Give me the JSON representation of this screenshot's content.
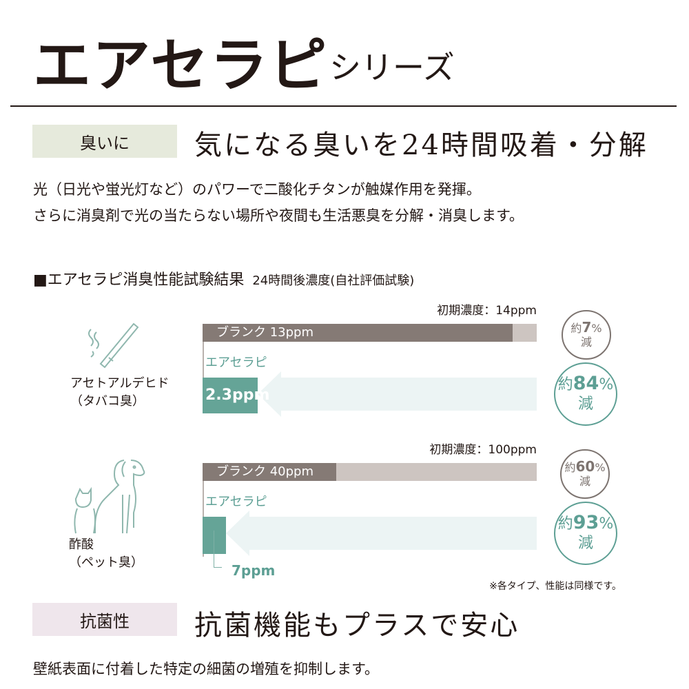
{
  "header": {
    "title": "エアセラピ",
    "subtitle": "シリーズ"
  },
  "section1": {
    "tag": "臭いに",
    "heading": "気になる臭いを24時間吸着・分解",
    "lines": [
      "光（日光や蛍光灯など）のパワーで二酸化チタンが触媒作用を発揮。",
      "さらに消臭剤で光の当たらない場所や夜間も生活悪臭を分解・消臭します。"
    ]
  },
  "chart_data": {
    "type": "bar",
    "title": "■エアセラピ消臭性能試験結果",
    "subtitle": "24時間後濃度(自社評価試験)",
    "unit": "ppm",
    "groups": [
      {
        "name": "アセトアルデヒド",
        "sub": "（タバコ臭）",
        "icon": "cigarette-icon",
        "initial_label": "初期濃度：14ppm",
        "initial": 14,
        "blank": {
          "label": "ブランク 13ppm",
          "value": 13
        },
        "product": {
          "label": "エアセラピ",
          "value": 2.3,
          "value_label": "2.3ppm"
        },
        "blank_reduction": {
          "pre": "約",
          "num": "7",
          "pct": "%",
          "post": "減"
        },
        "product_reduction": {
          "pre": "約",
          "num": "84",
          "pct": "%",
          "post": "減"
        }
      },
      {
        "name": "酢酸",
        "sub": "（ペット臭）",
        "icon": "dog-cat-icon",
        "initial_label": "初期濃度：100ppm",
        "initial": 100,
        "blank": {
          "label": "ブランク 40ppm",
          "value": 40
        },
        "product": {
          "label": "エアセラピ",
          "value": 7,
          "value_label": "7ppm"
        },
        "blank_reduction": {
          "pre": "約",
          "num": "60",
          "pct": "%",
          "post": "減"
        },
        "product_reduction": {
          "pre": "約",
          "num": "93",
          "pct": "%",
          "post": "減"
        }
      }
    ],
    "note": "※各タイプ、性能は同様です。",
    "colors": {
      "blank": "#857a75",
      "initial": "#cdc5c1",
      "product": "#65a497",
      "arrow": "#ecf4f4"
    }
  },
  "section2": {
    "tag": "抗菌性",
    "heading": "抗菌機能もプラスで安心",
    "lines": [
      "壁紙表面に付着した特定の細菌の増殖を抑制します。"
    ]
  }
}
